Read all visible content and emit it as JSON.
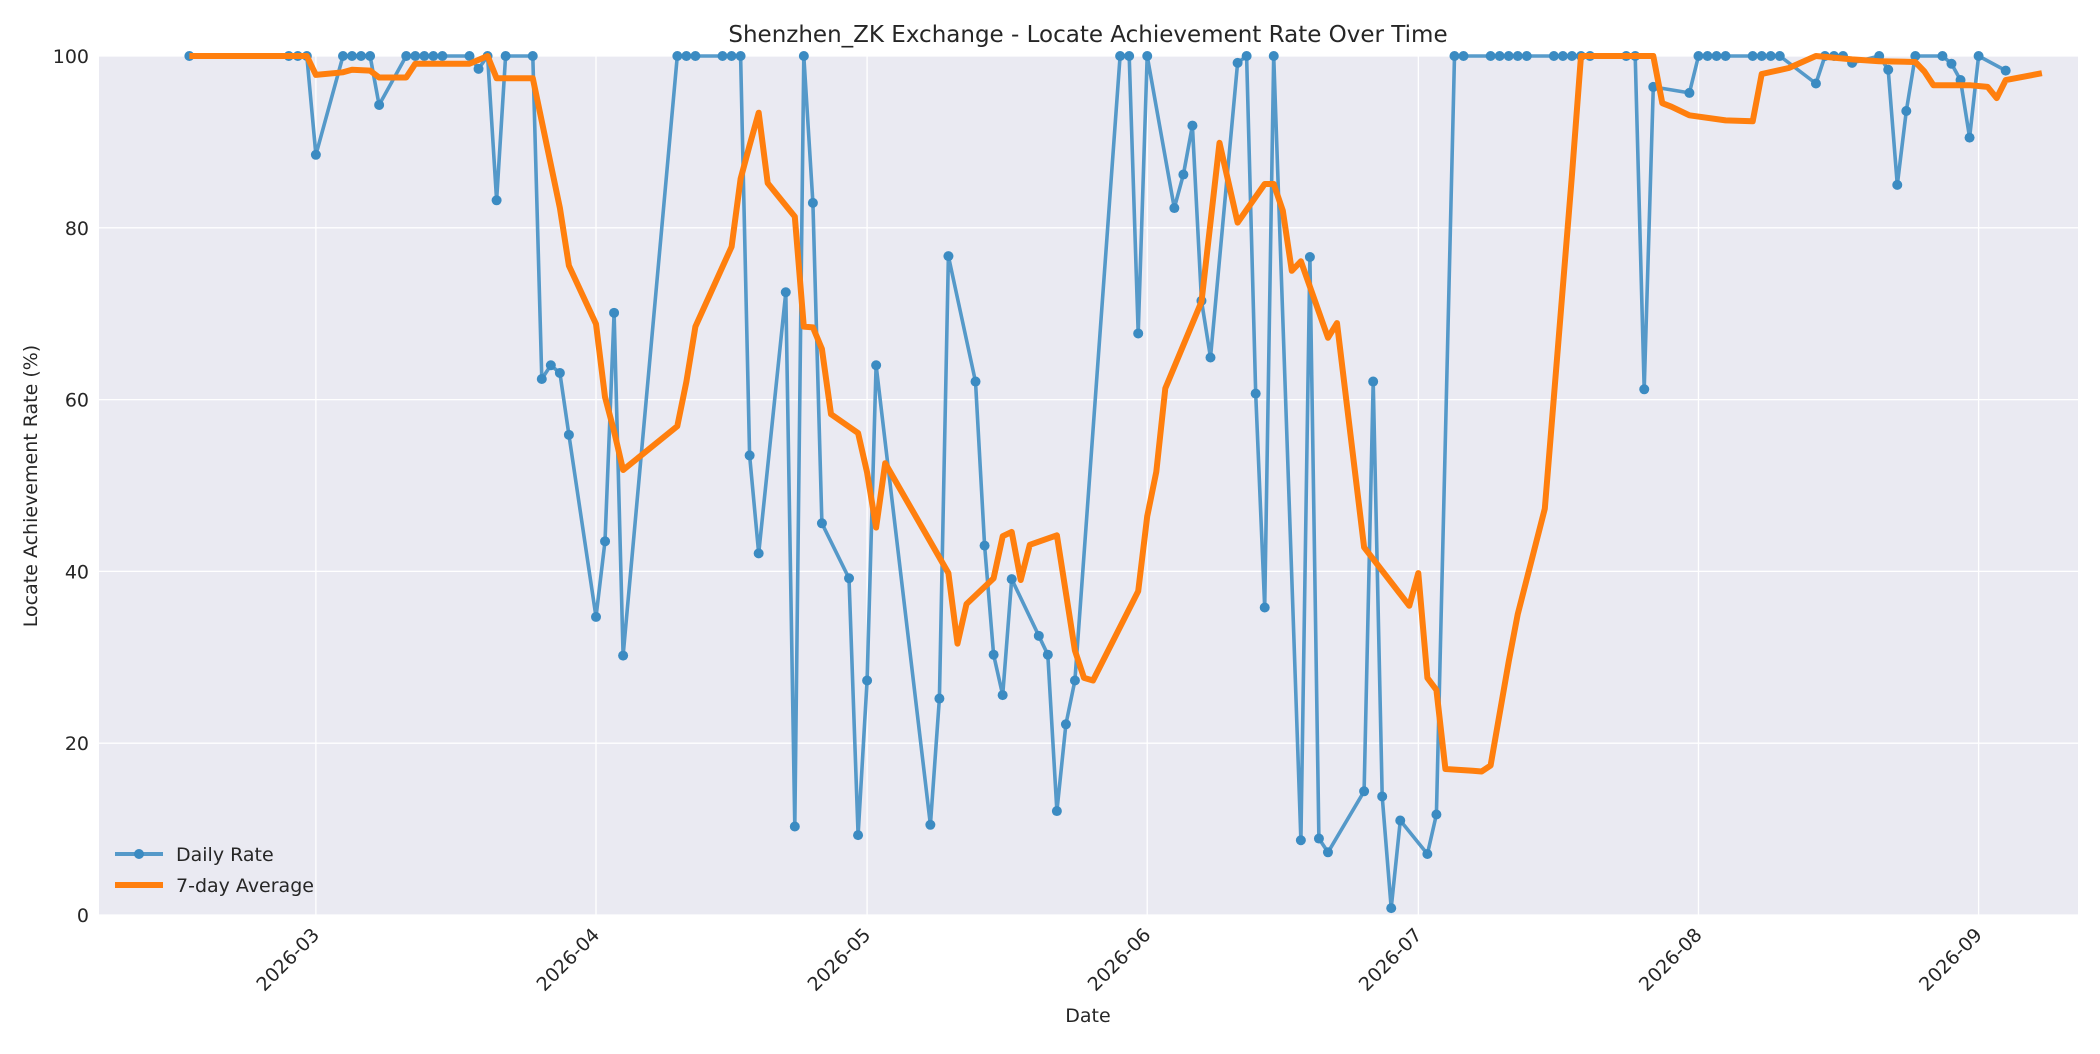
{
  "chart_data": {
    "type": "line",
    "title": "Shenzhen_ZK Exchange - Locate Achievement Rate Over Time",
    "xlabel": "Date",
    "ylabel": "Locate Achievement Rate (%)",
    "xlim": [
      "2026-02-05",
      "2026-09-12"
    ],
    "ylim": [
      0,
      100
    ],
    "x_ticks": [
      "2026-03",
      "2026-04",
      "2026-05",
      "2026-06",
      "2026-07",
      "2026-08",
      "2026-09"
    ],
    "y_ticks": [
      0,
      20,
      40,
      60,
      80,
      100
    ],
    "grid": true,
    "legend_position": "lower-left",
    "colors": {
      "daily": "#3b8bc2",
      "average": "#ff7f0e",
      "plot_bg": "#eaeaf2",
      "grid": "#ffffff"
    },
    "series": [
      {
        "name": "Daily Rate",
        "style": "line-with-markers",
        "points": [
          [
            "2026-02-15",
            100
          ],
          [
            "2026-02-26",
            100
          ],
          [
            "2026-02-27",
            100
          ],
          [
            "2026-02-28",
            100
          ],
          [
            "2026-03-01",
            88.5
          ],
          [
            "2026-03-04",
            100
          ],
          [
            "2026-03-05",
            100
          ],
          [
            "2026-03-06",
            100
          ],
          [
            "2026-03-07",
            100
          ],
          [
            "2026-03-08",
            94.3
          ],
          [
            "2026-03-11",
            100
          ],
          [
            "2026-03-12",
            100
          ],
          [
            "2026-03-13",
            100
          ],
          [
            "2026-03-14",
            100
          ],
          [
            "2026-03-15",
            100
          ],
          [
            "2026-03-18",
            100
          ],
          [
            "2026-03-19",
            98.5
          ],
          [
            "2026-03-20",
            100
          ],
          [
            "2026-03-21",
            83.2
          ],
          [
            "2026-03-22",
            100
          ],
          [
            "2026-03-25",
            100
          ],
          [
            "2026-03-26",
            62.4
          ],
          [
            "2026-03-27",
            64
          ],
          [
            "2026-03-28",
            63.1
          ],
          [
            "2026-03-29",
            55.9
          ],
          [
            "2026-04-01",
            34.7
          ],
          [
            "2026-04-02",
            43.5
          ],
          [
            "2026-04-03",
            70.1
          ],
          [
            "2026-04-04",
            30.2
          ],
          [
            "2026-04-10",
            100
          ],
          [
            "2026-04-11",
            100
          ],
          [
            "2026-04-12",
            100
          ],
          [
            "2026-04-15",
            100
          ],
          [
            "2026-04-16",
            100
          ],
          [
            "2026-04-17",
            100
          ],
          [
            "2026-04-18",
            53.5
          ],
          [
            "2026-04-19",
            42.1
          ],
          [
            "2026-04-22",
            72.5
          ],
          [
            "2026-04-23",
            10.3
          ],
          [
            "2026-04-24",
            100
          ],
          [
            "2026-04-25",
            82.9
          ],
          [
            "2026-04-26",
            45.6
          ],
          [
            "2026-04-29",
            39.2
          ],
          [
            "2026-04-30",
            9.3
          ],
          [
            "2026-05-01",
            27.3
          ],
          [
            "2026-05-02",
            64
          ],
          [
            "2026-05-08",
            10.5
          ],
          [
            "2026-05-09",
            25.2
          ],
          [
            "2026-05-10",
            76.7
          ],
          [
            "2026-05-13",
            62.1
          ],
          [
            "2026-05-14",
            43
          ],
          [
            "2026-05-15",
            30.3
          ],
          [
            "2026-05-16",
            25.6
          ],
          [
            "2026-05-17",
            39.1
          ],
          [
            "2026-05-20",
            32.5
          ],
          [
            "2026-05-21",
            30.3
          ],
          [
            "2026-05-22",
            12.1
          ],
          [
            "2026-05-23",
            22.2
          ],
          [
            "2026-05-24",
            27.3
          ],
          [
            "2026-05-29",
            100
          ],
          [
            "2026-05-30",
            100
          ],
          [
            "2026-05-31",
            67.7
          ],
          [
            "2026-06-01",
            100
          ],
          [
            "2026-06-04",
            82.3
          ],
          [
            "2026-06-05",
            86.2
          ],
          [
            "2026-06-06",
            91.9
          ],
          [
            "2026-06-07",
            71.5
          ],
          [
            "2026-06-08",
            64.9
          ],
          [
            "2026-06-11",
            99.2
          ],
          [
            "2026-06-12",
            100
          ],
          [
            "2026-06-13",
            60.7
          ],
          [
            "2026-06-14",
            35.8
          ],
          [
            "2026-06-15",
            100
          ],
          [
            "2026-06-18",
            8.7
          ],
          [
            "2026-06-19",
            76.6
          ],
          [
            "2026-06-20",
            8.9
          ],
          [
            "2026-06-21",
            7.3
          ],
          [
            "2026-06-25",
            14.4
          ],
          [
            "2026-06-26",
            62.1
          ],
          [
            "2026-06-27",
            13.8
          ],
          [
            "2026-06-28",
            0.8
          ],
          [
            "2026-06-29",
            11
          ],
          [
            "2026-07-02",
            7.1
          ],
          [
            "2026-07-03",
            11.7
          ],
          [
            "2026-07-05",
            100
          ],
          [
            "2026-07-06",
            100
          ],
          [
            "2026-07-09",
            100
          ],
          [
            "2026-07-10",
            100
          ],
          [
            "2026-07-11",
            100
          ],
          [
            "2026-07-12",
            100
          ],
          [
            "2026-07-13",
            100
          ],
          [
            "2026-07-16",
            100
          ],
          [
            "2026-07-17",
            100
          ],
          [
            "2026-07-18",
            100
          ],
          [
            "2026-07-19",
            100
          ],
          [
            "2026-07-20",
            100
          ],
          [
            "2026-07-24",
            100
          ],
          [
            "2026-07-25",
            100
          ],
          [
            "2026-07-26",
            61.2
          ],
          [
            "2026-07-27",
            96.4
          ],
          [
            "2026-07-31",
            95.7
          ],
          [
            "2026-08-01",
            100
          ],
          [
            "2026-08-02",
            100
          ],
          [
            "2026-08-03",
            100
          ],
          [
            "2026-08-04",
            100
          ],
          [
            "2026-08-07",
            100
          ],
          [
            "2026-08-08",
            100
          ],
          [
            "2026-08-09",
            100
          ],
          [
            "2026-08-10",
            100
          ],
          [
            "2026-08-14",
            96.8
          ],
          [
            "2026-08-15",
            100
          ],
          [
            "2026-08-16",
            100
          ],
          [
            "2026-08-17",
            100
          ],
          [
            "2026-08-18",
            99.2
          ],
          [
            "2026-08-21",
            100
          ],
          [
            "2026-08-22",
            98.4
          ],
          [
            "2026-08-23",
            85
          ],
          [
            "2026-08-24",
            93.6
          ],
          [
            "2026-08-25",
            100
          ],
          [
            "2026-08-28",
            100
          ],
          [
            "2026-08-29",
            99.1
          ],
          [
            "2026-08-30",
            97.2
          ],
          [
            "2026-08-31",
            90.5
          ],
          [
            "2026-09-01",
            100
          ],
          [
            "2026-09-04",
            98.3
          ]
        ]
      },
      {
        "name": "7-day Average",
        "style": "thick-line",
        "points": [
          [
            "2026-02-15",
            100
          ],
          [
            "2026-02-28",
            100
          ],
          [
            "2026-03-01",
            97.8
          ],
          [
            "2026-03-04",
            98.1
          ],
          [
            "2026-03-05",
            98.4
          ],
          [
            "2026-03-07",
            98.3
          ],
          [
            "2026-03-08",
            97.5
          ],
          [
            "2026-03-11",
            97.5
          ],
          [
            "2026-03-12",
            99.1
          ],
          [
            "2026-03-18",
            99.1
          ],
          [
            "2026-03-20",
            100
          ],
          [
            "2026-03-21",
            97.4
          ],
          [
            "2026-03-25",
            97.4
          ],
          [
            "2026-03-28",
            82.3
          ],
          [
            "2026-03-29",
            75.6
          ],
          [
            "2026-04-01",
            68.8
          ],
          [
            "2026-04-02",
            60.3
          ],
          [
            "2026-04-03",
            56.3
          ],
          [
            "2026-04-04",
            51.8
          ],
          [
            "2026-04-10",
            56.9
          ],
          [
            "2026-04-11",
            62.1
          ],
          [
            "2026-04-12",
            68.5
          ],
          [
            "2026-04-16",
            77.8
          ],
          [
            "2026-04-17",
            85.7
          ],
          [
            "2026-04-18",
            89.6
          ],
          [
            "2026-04-19",
            93.4
          ],
          [
            "2026-04-20",
            85.2
          ],
          [
            "2026-04-23",
            81.3
          ],
          [
            "2026-04-24",
            68.5
          ],
          [
            "2026-04-25",
            68.4
          ],
          [
            "2026-04-26",
            65.9
          ],
          [
            "2026-04-27",
            58.3
          ],
          [
            "2026-04-30",
            56.1
          ],
          [
            "2026-05-01",
            51.5
          ],
          [
            "2026-05-02",
            45.1
          ],
          [
            "2026-05-03",
            52.6
          ],
          [
            "2026-05-10",
            39.8
          ],
          [
            "2026-05-11",
            31.6
          ],
          [
            "2026-05-12",
            36.2
          ],
          [
            "2026-05-15",
            39.2
          ],
          [
            "2026-05-16",
            44.1
          ],
          [
            "2026-05-17",
            44.6
          ],
          [
            "2026-05-18",
            39
          ],
          [
            "2026-05-19",
            43.1
          ],
          [
            "2026-05-22",
            44.2
          ],
          [
            "2026-05-24",
            30.8
          ],
          [
            "2026-05-25",
            27.6
          ],
          [
            "2026-05-26",
            27.3
          ],
          [
            "2026-05-31",
            37.7
          ],
          [
            "2026-06-01",
            46.4
          ],
          [
            "2026-06-02",
            51.6
          ],
          [
            "2026-06-03",
            61.3
          ],
          [
            "2026-06-07",
            71.4
          ],
          [
            "2026-06-09",
            89.9
          ],
          [
            "2026-06-11",
            80.6
          ],
          [
            "2026-06-14",
            85.1
          ],
          [
            "2026-06-15",
            85.1
          ],
          [
            "2026-06-16",
            82
          ],
          [
            "2026-06-17",
            75
          ],
          [
            "2026-06-18",
            76.1
          ],
          [
            "2026-06-21",
            67.2
          ],
          [
            "2026-06-22",
            68.9
          ],
          [
            "2026-06-25",
            42.8
          ],
          [
            "2026-06-30",
            36
          ],
          [
            "2026-07-01",
            39.8
          ],
          [
            "2026-07-02",
            27.6
          ],
          [
            "2026-07-03",
            26.2
          ],
          [
            "2026-07-04",
            17
          ],
          [
            "2026-07-07",
            16.8
          ],
          [
            "2026-07-08",
            16.7
          ],
          [
            "2026-07-09",
            17.4
          ],
          [
            "2026-07-11",
            29.5
          ],
          [
            "2026-07-12",
            35
          ],
          [
            "2026-07-15",
            47.3
          ],
          [
            "2026-07-18",
            86.2
          ],
          [
            "2026-07-19",
            100
          ],
          [
            "2026-07-27",
            100
          ],
          [
            "2026-07-28",
            94.5
          ],
          [
            "2026-07-29",
            94.1
          ],
          [
            "2026-07-31",
            93.1
          ],
          [
            "2026-08-04",
            92.5
          ],
          [
            "2026-08-07",
            92.4
          ],
          [
            "2026-08-08",
            97.9
          ],
          [
            "2026-08-11",
            98.6
          ],
          [
            "2026-08-14",
            100
          ],
          [
            "2026-08-18",
            99.6
          ],
          [
            "2026-08-21",
            99.4
          ],
          [
            "2026-08-25",
            99.3
          ],
          [
            "2026-08-26",
            98.2
          ],
          [
            "2026-08-27",
            96.6
          ],
          [
            "2026-08-31",
            96.6
          ],
          [
            "2026-09-02",
            96.4
          ],
          [
            "2026-09-03",
            95.1
          ],
          [
            "2026-09-04",
            97.2
          ],
          [
            "2026-09-08",
            98
          ]
        ]
      }
    ]
  }
}
